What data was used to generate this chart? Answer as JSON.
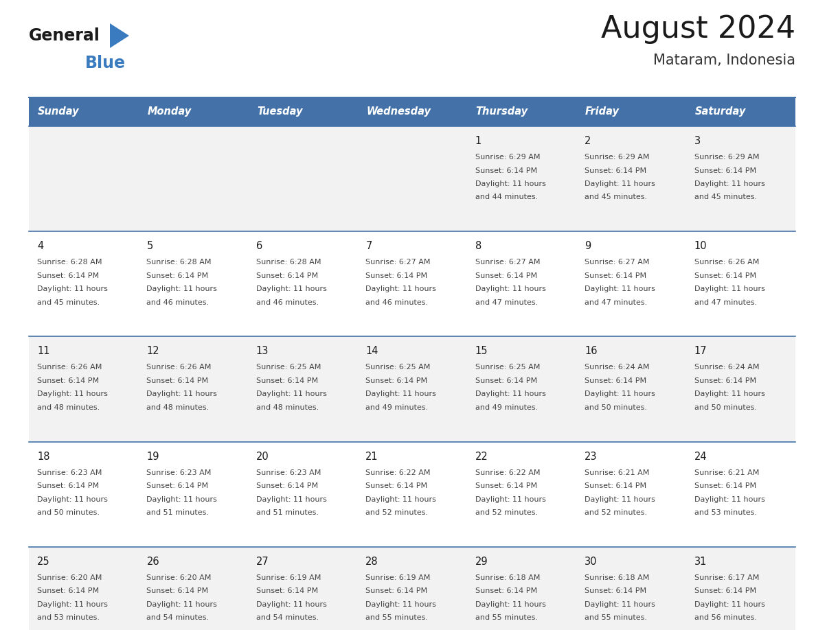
{
  "title": "August 2024",
  "subtitle": "Mataram, Indonesia",
  "header_bg": "#4472a8",
  "header_text_color": "#ffffff",
  "cell_bg_even": "#f2f2f2",
  "cell_bg_odd": "#ffffff",
  "day_number_color": "#1a1a1a",
  "cell_text_color": "#444444",
  "border_color": "#4472a8",
  "days_of_week": [
    "Sunday",
    "Monday",
    "Tuesday",
    "Wednesday",
    "Thursday",
    "Friday",
    "Saturday"
  ],
  "weeks": [
    [
      {
        "day": null,
        "sunrise": null,
        "sunset": null,
        "daylight": null
      },
      {
        "day": null,
        "sunrise": null,
        "sunset": null,
        "daylight": null
      },
      {
        "day": null,
        "sunrise": null,
        "sunset": null,
        "daylight": null
      },
      {
        "day": null,
        "sunrise": null,
        "sunset": null,
        "daylight": null
      },
      {
        "day": 1,
        "sunrise": "6:29 AM",
        "sunset": "6:14 PM",
        "daylight": "11 hours and 44 minutes."
      },
      {
        "day": 2,
        "sunrise": "6:29 AM",
        "sunset": "6:14 PM",
        "daylight": "11 hours and 45 minutes."
      },
      {
        "day": 3,
        "sunrise": "6:29 AM",
        "sunset": "6:14 PM",
        "daylight": "11 hours and 45 minutes."
      }
    ],
    [
      {
        "day": 4,
        "sunrise": "6:28 AM",
        "sunset": "6:14 PM",
        "daylight": "11 hours and 45 minutes."
      },
      {
        "day": 5,
        "sunrise": "6:28 AM",
        "sunset": "6:14 PM",
        "daylight": "11 hours and 46 minutes."
      },
      {
        "day": 6,
        "sunrise": "6:28 AM",
        "sunset": "6:14 PM",
        "daylight": "11 hours and 46 minutes."
      },
      {
        "day": 7,
        "sunrise": "6:27 AM",
        "sunset": "6:14 PM",
        "daylight": "11 hours and 46 minutes."
      },
      {
        "day": 8,
        "sunrise": "6:27 AM",
        "sunset": "6:14 PM",
        "daylight": "11 hours and 47 minutes."
      },
      {
        "day": 9,
        "sunrise": "6:27 AM",
        "sunset": "6:14 PM",
        "daylight": "11 hours and 47 minutes."
      },
      {
        "day": 10,
        "sunrise": "6:26 AM",
        "sunset": "6:14 PM",
        "daylight": "11 hours and 47 minutes."
      }
    ],
    [
      {
        "day": 11,
        "sunrise": "6:26 AM",
        "sunset": "6:14 PM",
        "daylight": "11 hours and 48 minutes."
      },
      {
        "day": 12,
        "sunrise": "6:26 AM",
        "sunset": "6:14 PM",
        "daylight": "11 hours and 48 minutes."
      },
      {
        "day": 13,
        "sunrise": "6:25 AM",
        "sunset": "6:14 PM",
        "daylight": "11 hours and 48 minutes."
      },
      {
        "day": 14,
        "sunrise": "6:25 AM",
        "sunset": "6:14 PM",
        "daylight": "11 hours and 49 minutes."
      },
      {
        "day": 15,
        "sunrise": "6:25 AM",
        "sunset": "6:14 PM",
        "daylight": "11 hours and 49 minutes."
      },
      {
        "day": 16,
        "sunrise": "6:24 AM",
        "sunset": "6:14 PM",
        "daylight": "11 hours and 50 minutes."
      },
      {
        "day": 17,
        "sunrise": "6:24 AM",
        "sunset": "6:14 PM",
        "daylight": "11 hours and 50 minutes."
      }
    ],
    [
      {
        "day": 18,
        "sunrise": "6:23 AM",
        "sunset": "6:14 PM",
        "daylight": "11 hours and 50 minutes."
      },
      {
        "day": 19,
        "sunrise": "6:23 AM",
        "sunset": "6:14 PM",
        "daylight": "11 hours and 51 minutes."
      },
      {
        "day": 20,
        "sunrise": "6:23 AM",
        "sunset": "6:14 PM",
        "daylight": "11 hours and 51 minutes."
      },
      {
        "day": 21,
        "sunrise": "6:22 AM",
        "sunset": "6:14 PM",
        "daylight": "11 hours and 52 minutes."
      },
      {
        "day": 22,
        "sunrise": "6:22 AM",
        "sunset": "6:14 PM",
        "daylight": "11 hours and 52 minutes."
      },
      {
        "day": 23,
        "sunrise": "6:21 AM",
        "sunset": "6:14 PM",
        "daylight": "11 hours and 52 minutes."
      },
      {
        "day": 24,
        "sunrise": "6:21 AM",
        "sunset": "6:14 PM",
        "daylight": "11 hours and 53 minutes."
      }
    ],
    [
      {
        "day": 25,
        "sunrise": "6:20 AM",
        "sunset": "6:14 PM",
        "daylight": "11 hours and 53 minutes."
      },
      {
        "day": 26,
        "sunrise": "6:20 AM",
        "sunset": "6:14 PM",
        "daylight": "11 hours and 54 minutes."
      },
      {
        "day": 27,
        "sunrise": "6:19 AM",
        "sunset": "6:14 PM",
        "daylight": "11 hours and 54 minutes."
      },
      {
        "day": 28,
        "sunrise": "6:19 AM",
        "sunset": "6:14 PM",
        "daylight": "11 hours and 55 minutes."
      },
      {
        "day": 29,
        "sunrise": "6:18 AM",
        "sunset": "6:14 PM",
        "daylight": "11 hours and 55 minutes."
      },
      {
        "day": 30,
        "sunrise": "6:18 AM",
        "sunset": "6:14 PM",
        "daylight": "11 hours and 55 minutes."
      },
      {
        "day": 31,
        "sunrise": "6:17 AM",
        "sunset": "6:14 PM",
        "daylight": "11 hours and 56 minutes."
      }
    ]
  ],
  "figsize": [
    11.88,
    9.18
  ],
  "dpi": 100
}
